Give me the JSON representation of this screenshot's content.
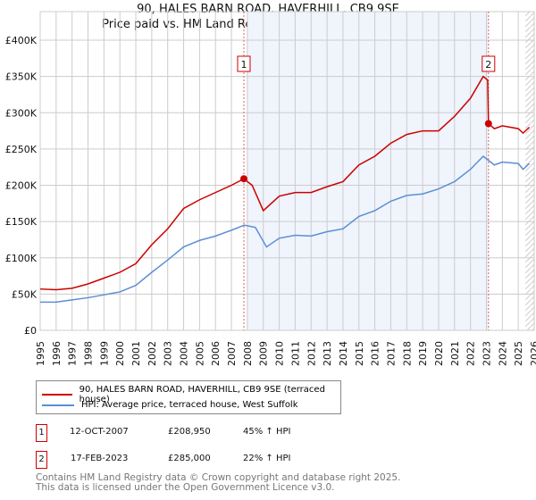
{
  "chart_data": {
    "type": "line",
    "title": "90, HALES BARN ROAD, HAVERHILL, CB9 9SE",
    "subtitle": "Price paid vs. HM Land Registry's House Price Index (HPI)",
    "xlim": [
      1995,
      2026
    ],
    "ylim": [
      0,
      400000
    ],
    "yticks": [
      0,
      50000,
      100000,
      150000,
      200000,
      250000,
      300000,
      350000,
      400000
    ],
    "ytick_labels": [
      "£0",
      "£50K",
      "£100K",
      "£150K",
      "£200K",
      "£250K",
      "£300K",
      "£350K",
      "£400K"
    ],
    "xticks": [
      1995,
      1996,
      1997,
      1998,
      1999,
      2000,
      2001,
      2002,
      2003,
      2004,
      2005,
      2006,
      2007,
      2008,
      2009,
      2010,
      2011,
      2012,
      2013,
      2014,
      2015,
      2016,
      2017,
      2018,
      2019,
      2020,
      2021,
      2022,
      2023,
      2024,
      2025,
      2026
    ],
    "grid": true,
    "shaded_range": [
      2008,
      2023.13
    ],
    "hatched_from": 2025.45,
    "series": [
      {
        "name": "90, HALES BARN ROAD, HAVERHILL, CB9 9SE (terraced house)",
        "color": "#cc0000",
        "x": [
          1995,
          1996,
          1997,
          1998,
          1999,
          2000,
          2001,
          2002,
          2003,
          2004,
          2005,
          2006,
          2007,
          2007.78,
          2008.3,
          2009,
          2010,
          2011,
          2012,
          2013,
          2014,
          2015,
          2016,
          2017,
          2018,
          2019,
          2020,
          2021,
          2022,
          2022.8,
          2023.08,
          2023.13,
          2023.5,
          2024,
          2025,
          2025.3,
          2025.7
        ],
        "y": [
          57000,
          56000,
          58000,
          64000,
          72000,
          80000,
          92000,
          118000,
          140000,
          168000,
          180000,
          190000,
          200000,
          208950,
          200000,
          165000,
          185000,
          190000,
          190000,
          198000,
          205000,
          228000,
          240000,
          258000,
          270000,
          275000,
          275000,
          295000,
          320000,
          350000,
          345000,
          285000,
          278000,
          282000,
          278000,
          272000,
          280000
        ]
      },
      {
        "name": "HPI: Average price, terraced house, West Suffolk",
        "color": "#5b8fd4",
        "x": [
          1995,
          1996,
          1997,
          1998,
          1999,
          2000,
          2001,
          2002,
          2003,
          2004,
          2005,
          2006,
          2007,
          2007.8,
          2008.5,
          2009.2,
          2010,
          2011,
          2012,
          2013,
          2014,
          2015,
          2016,
          2017,
          2018,
          2019,
          2020,
          2021,
          2022,
          2022.8,
          2023.5,
          2024,
          2025,
          2025.3,
          2025.7
        ],
        "y": [
          39000,
          39000,
          42000,
          45000,
          49000,
          53000,
          62000,
          80000,
          97000,
          115000,
          124000,
          130000,
          138000,
          145000,
          142000,
          115000,
          127000,
          131000,
          130000,
          136000,
          140000,
          157000,
          165000,
          178000,
          186000,
          188000,
          195000,
          205000,
          222000,
          240000,
          228000,
          232000,
          230000,
          222000,
          230000
        ]
      }
    ],
    "annotations": [
      {
        "label": "1",
        "x": 2007.78,
        "y": 208950,
        "date": "12-OCT-2007",
        "price": "£208,950",
        "hpi": "45% ↑ HPI"
      },
      {
        "label": "2",
        "x": 2023.13,
        "y": 285000,
        "date": "17-FEB-2023",
        "price": "£285,000",
        "hpi": "22% ↑ HPI"
      }
    ]
  },
  "footer": {
    "line1": "Contains HM Land Registry data © Crown copyright and database right 2025.",
    "line2": "This data is licensed under the Open Government Licence v3.0."
  }
}
